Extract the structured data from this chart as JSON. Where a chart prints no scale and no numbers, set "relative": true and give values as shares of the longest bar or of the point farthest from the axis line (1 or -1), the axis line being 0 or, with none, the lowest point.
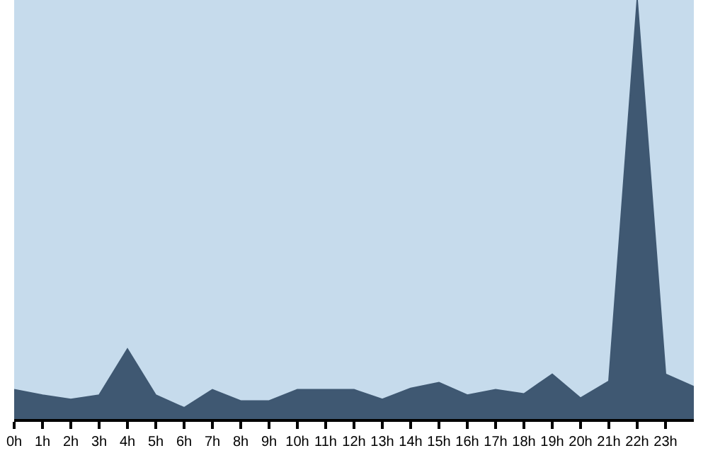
{
  "chart_data": {
    "type": "area",
    "relative": true,
    "categories": [
      "0h",
      "1h",
      "2h",
      "3h",
      "4h",
      "5h",
      "6h",
      "7h",
      "8h",
      "9h",
      "10h",
      "11h",
      "12h",
      "13h",
      "14h",
      "15h",
      "16h",
      "17h",
      "18h",
      "19h",
      "20h",
      "21h",
      "22h",
      "23h",
      null
    ],
    "series": [
      {
        "color": "#3f5872",
        "values": [
          0.07,
          0.057,
          0.047,
          0.057,
          0.167,
          0.057,
          0.027,
          0.07,
          0.043,
          0.043,
          0.07,
          0.07,
          0.07,
          0.047,
          0.073,
          0.087,
          0.057,
          0.07,
          0.06,
          0.107,
          0.05,
          0.09,
          1,
          0.107,
          0.077
        ]
      }
    ]
  }
}
